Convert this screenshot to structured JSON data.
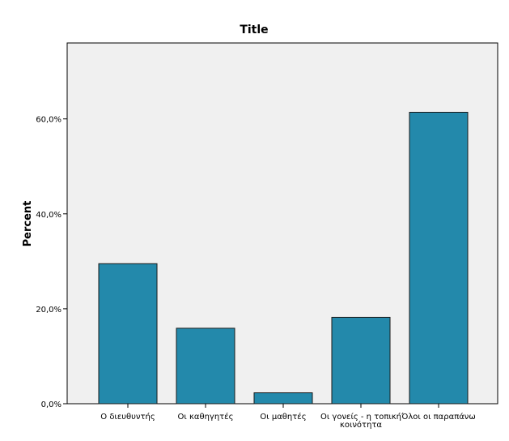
{
  "chart_data": {
    "type": "bar",
    "title": "Title",
    "xlabel": "",
    "ylabel": "Percent",
    "categories": [
      [
        "Ο διευθυντής"
      ],
      [
        "Οι καθηγητές"
      ],
      [
        "Οι μαθητές"
      ],
      [
        "Οι γονείς - η τοπική",
        "κοινότητα"
      ],
      [
        "Όλοι οι παραπάνω"
      ]
    ],
    "values": [
      29.5,
      15.9,
      2.3,
      18.2,
      61.4
    ],
    "ylim": [
      0,
      76
    ],
    "yticks": [
      0,
      20,
      40,
      60
    ],
    "ytick_labels": [
      "0,0%",
      "20,0%",
      "40,0%",
      "60,0%"
    ],
    "grid": false,
    "colors": {
      "bar_fill": "#2389ab",
      "bar_stroke": "#1a1a1a",
      "plot_bg": "#f0f0f0",
      "frame": "#000000"
    }
  }
}
